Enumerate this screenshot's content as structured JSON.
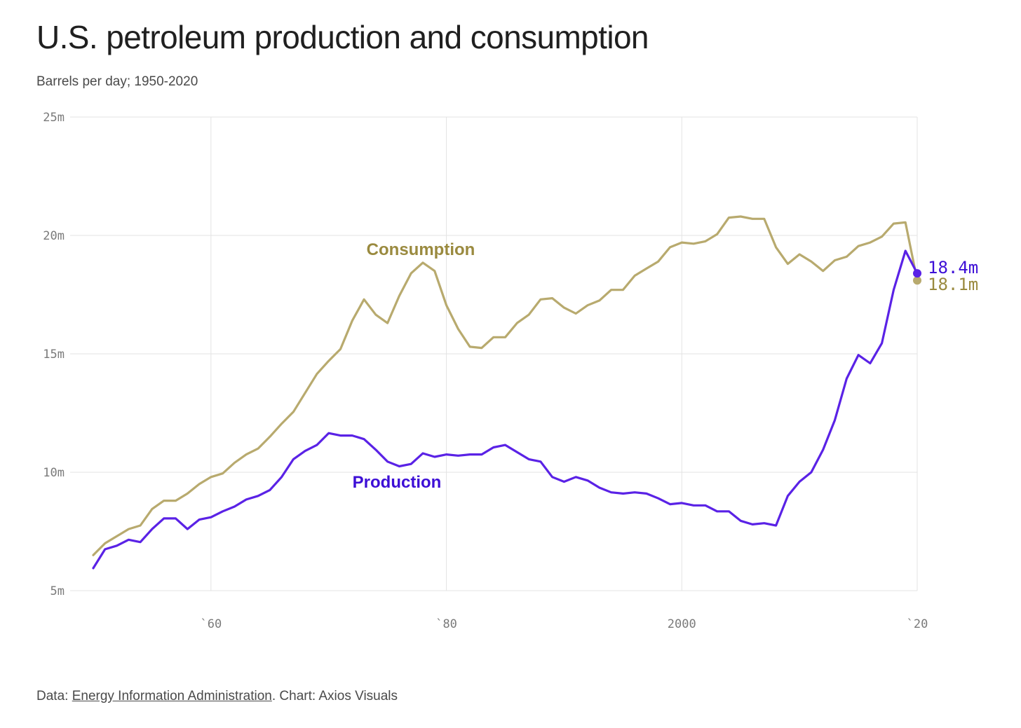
{
  "title": "U.S. petroleum production and consumption",
  "subtitle": "Barrels per day; 1950-2020",
  "source": {
    "prefix": "Data: ",
    "link_text": "Energy Information Administration",
    "suffix": ". Chart: Axios Visuals"
  },
  "colors": {
    "consumption": "#b8aa6e",
    "consumption_label": "#9a8a3f",
    "production": "#5a22e6",
    "production_label": "#3d0fd6",
    "grid": "#e3e3e3"
  },
  "chart_data": {
    "type": "line",
    "x_range": [
      1950,
      2020
    ],
    "ylim": [
      5,
      25
    ],
    "y_unit": "million barrels per day",
    "y_ticks": [
      {
        "value": 5,
        "label": "5m"
      },
      {
        "value": 10,
        "label": "10m"
      },
      {
        "value": 15,
        "label": "15m"
      },
      {
        "value": 20,
        "label": "20m"
      },
      {
        "value": 25,
        "label": "25m"
      }
    ],
    "x_ticks": [
      {
        "value": 1960,
        "label": "`60"
      },
      {
        "value": 1980,
        "label": "`80"
      },
      {
        "value": 2000,
        "label": "2000"
      },
      {
        "value": 2020,
        "label": "`20"
      }
    ],
    "grid": true,
    "x": [
      1950,
      1951,
      1952,
      1953,
      1954,
      1955,
      1956,
      1957,
      1958,
      1959,
      1960,
      1961,
      1962,
      1963,
      1964,
      1965,
      1966,
      1967,
      1968,
      1969,
      1970,
      1971,
      1972,
      1973,
      1974,
      1975,
      1976,
      1977,
      1978,
      1979,
      1980,
      1981,
      1982,
      1983,
      1984,
      1985,
      1986,
      1987,
      1988,
      1989,
      1990,
      1991,
      1992,
      1993,
      1994,
      1995,
      1996,
      1997,
      1998,
      1999,
      2000,
      2001,
      2002,
      2003,
      2004,
      2005,
      2006,
      2007,
      2008,
      2009,
      2010,
      2011,
      2012,
      2013,
      2014,
      2015,
      2016,
      2017,
      2018,
      2019,
      2020
    ],
    "series": [
      {
        "name": "Consumption",
        "values": [
          6.5,
          7.0,
          7.3,
          7.6,
          7.75,
          8.45,
          8.8,
          8.8,
          9.1,
          9.5,
          9.8,
          9.95,
          10.4,
          10.75,
          11.0,
          11.5,
          12.05,
          12.55,
          13.35,
          14.15,
          14.7,
          15.2,
          16.4,
          17.3,
          16.65,
          16.3,
          17.45,
          18.4,
          18.85,
          18.5,
          17.05,
          16.05,
          15.3,
          15.25,
          15.7,
          15.7,
          16.3,
          16.65,
          17.3,
          17.35,
          16.95,
          16.7,
          17.05,
          17.25,
          17.7,
          17.7,
          18.3,
          18.6,
          18.9,
          19.5,
          19.7,
          19.65,
          19.75,
          20.05,
          20.75,
          20.8,
          20.7,
          20.7,
          19.5,
          18.8,
          19.2,
          18.9,
          18.5,
          18.95,
          19.1,
          19.55,
          19.7,
          19.95,
          20.5,
          20.55,
          18.1
        ],
        "end_label": "18.1m"
      },
      {
        "name": "Production",
        "values": [
          5.95,
          6.75,
          6.9,
          7.15,
          7.05,
          7.6,
          8.05,
          8.05,
          7.6,
          8.0,
          8.1,
          8.35,
          8.55,
          8.85,
          9.0,
          9.25,
          9.8,
          10.55,
          10.9,
          11.15,
          11.65,
          11.55,
          11.55,
          11.4,
          10.95,
          10.45,
          10.25,
          10.35,
          10.8,
          10.65,
          10.75,
          10.7,
          10.75,
          10.75,
          11.05,
          11.15,
          10.85,
          10.55,
          10.45,
          9.8,
          9.6,
          9.8,
          9.65,
          9.35,
          9.15,
          9.1,
          9.15,
          9.1,
          8.9,
          8.65,
          8.7,
          8.6,
          8.6,
          8.35,
          8.35,
          7.95,
          7.8,
          7.85,
          7.75,
          9.0,
          9.6,
          10.0,
          10.95,
          12.2,
          13.95,
          14.95,
          14.6,
          15.45,
          17.7,
          19.35,
          18.4
        ],
        "end_label": "18.4m"
      }
    ]
  }
}
